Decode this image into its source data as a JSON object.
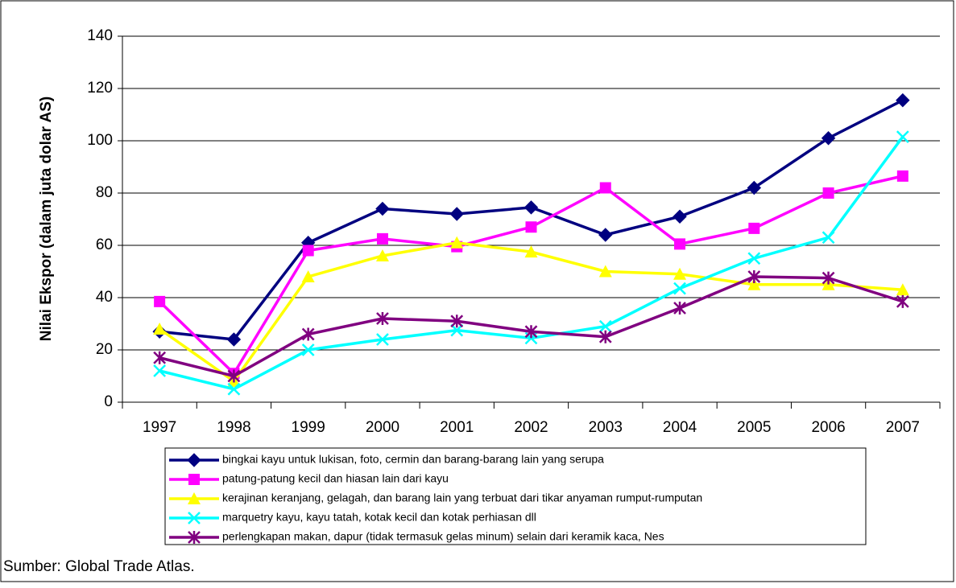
{
  "chart_data": {
    "type": "line",
    "ylabel": "Nilai Ekspor (dalam juta dolar AS)",
    "source": "Sumber: Global Trade Atlas.",
    "categories": [
      "1997",
      "1998",
      "1999",
      "2000",
      "2001",
      "2002",
      "2003",
      "2004",
      "2005",
      "2006",
      "2007"
    ],
    "ylim": [
      0,
      140
    ],
    "yticks": [
      0,
      20,
      40,
      60,
      80,
      100,
      120,
      140
    ],
    "grid": true,
    "series": [
      {
        "name": "bingkai kayu untuk lukisan, foto, cermin dan barang-barang lain yang serupa",
        "color": "#000080",
        "marker": "diamond",
        "values": [
          27,
          24,
          61,
          74,
          72,
          74.5,
          64,
          71,
          82,
          101,
          115.5
        ]
      },
      {
        "name": "patung-patung kecil dan hiasan lain dari kayu",
        "color": "#ff00ff",
        "marker": "square",
        "values": [
          38.5,
          11,
          58,
          62.5,
          59.5,
          67,
          82,
          60.5,
          66.5,
          80,
          86.5
        ]
      },
      {
        "name": "kerajinan keranjang, gelagah, dan barang lain yang terbuat dari tikar anyaman rumput-rumputan",
        "color": "#ffff00",
        "marker": "triangle",
        "values": [
          28,
          8,
          48,
          56,
          61,
          57.5,
          50,
          49,
          45,
          45,
          43
        ]
      },
      {
        "name": "marquetry kayu, kayu tatah, kotak kecil dan kotak perhiasan dll",
        "color": "#00ffff",
        "marker": "x",
        "values": [
          12,
          5,
          20,
          24,
          27.5,
          24.5,
          29,
          43.5,
          55,
          63,
          101.5
        ]
      },
      {
        "name": "perlengkapan makan, dapur (tidak termasuk gelas minum) selain dari keramik kaca, Nes",
        "color": "#800080",
        "marker": "star",
        "values": [
          17,
          10,
          26,
          32,
          31,
          27,
          25,
          36,
          48,
          47.5,
          38.5
        ]
      }
    ]
  }
}
